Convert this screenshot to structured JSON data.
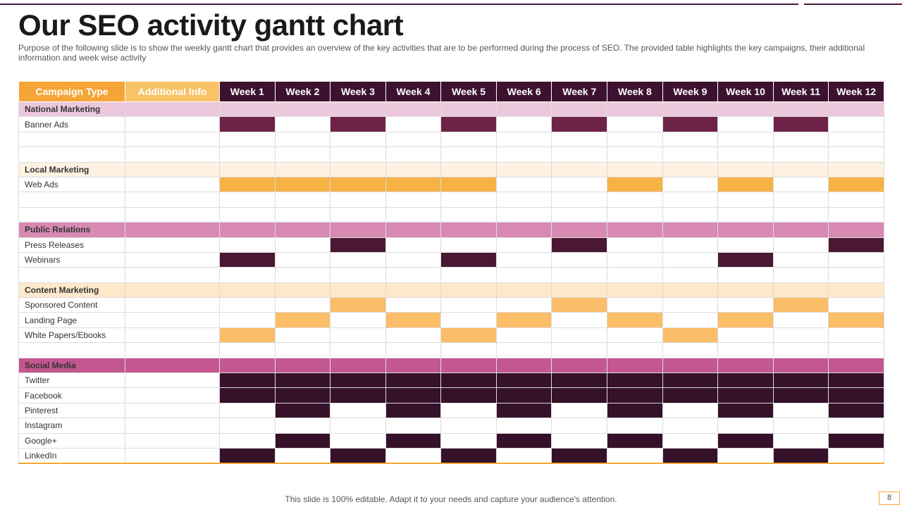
{
  "slide": {
    "title": "Our SEO activity gantt chart",
    "subtitle": "Purpose of the following slide is to show the weekly gantt chart that provides an overview of the key activities that are to be performed during the process of SEO. The provided table highlights the key campaigns, their additional information and week wise activity",
    "footer": "This slide is 100% editable. Adapt it to your needs and capture your audience's attention.",
    "page_number": "8"
  },
  "colors": {
    "header_campaign": "#f5a535",
    "header_info": "#f8c266",
    "header_week": "#3d1230"
  },
  "table": {
    "headers": {
      "campaign": "Campaign Type",
      "info": "Additional Info",
      "weeks": [
        "Week 1",
        "Week 2",
        "Week 3",
        "Week 4",
        "Week 5",
        "Week 6",
        "Week 7",
        "Week 8",
        "Week 9",
        "Week 10",
        "Week 11",
        "Week 12"
      ]
    },
    "rows": [
      {
        "type": "section",
        "label": "National Marketing",
        "bg": "#ecc8dd"
      },
      {
        "type": "task",
        "label": "Banner Ads",
        "color": "#6e2248",
        "weeks": [
          1,
          0,
          1,
          0,
          1,
          0,
          1,
          0,
          1,
          0,
          1,
          0
        ]
      },
      {
        "type": "task",
        "label": "",
        "color": "",
        "weeks": [
          0,
          0,
          0,
          0,
          0,
          0,
          0,
          0,
          0,
          0,
          0,
          0
        ]
      },
      {
        "type": "task",
        "label": "",
        "color": "",
        "weeks": [
          0,
          0,
          0,
          0,
          0,
          0,
          0,
          0,
          0,
          0,
          0,
          0
        ]
      },
      {
        "type": "section",
        "label": "Local Marketing",
        "bg": "#fdf1e2"
      },
      {
        "type": "task",
        "label": "Web Ads",
        "color": "#f7b244",
        "weeks": [
          1,
          1,
          1,
          1,
          1,
          0,
          0,
          1,
          0,
          1,
          0,
          1
        ]
      },
      {
        "type": "task",
        "label": "",
        "color": "",
        "weeks": [
          0,
          0,
          0,
          0,
          0,
          0,
          0,
          0,
          0,
          0,
          0,
          0
        ]
      },
      {
        "type": "task",
        "label": "",
        "color": "",
        "weeks": [
          0,
          0,
          0,
          0,
          0,
          0,
          0,
          0,
          0,
          0,
          0,
          0
        ]
      },
      {
        "type": "section",
        "label": "Public Relations",
        "bg": "#d88ab3"
      },
      {
        "type": "task",
        "label": "Press Releases",
        "color": "#4a1833",
        "weeks": [
          0,
          0,
          1,
          0,
          0,
          0,
          1,
          0,
          0,
          0,
          0,
          1
        ]
      },
      {
        "type": "task",
        "label": "Webinars",
        "color": "#4a1833",
        "weeks": [
          1,
          0,
          0,
          0,
          1,
          0,
          0,
          0,
          0,
          1,
          0,
          0
        ]
      },
      {
        "type": "task",
        "label": "",
        "color": "",
        "weeks": [
          0,
          0,
          0,
          0,
          0,
          0,
          0,
          0,
          0,
          0,
          0,
          0
        ]
      },
      {
        "type": "section",
        "label": "Content Marketing",
        "bg": "#fde8c9"
      },
      {
        "type": "task",
        "label": "Sponsored Content",
        "color": "#fbbd68",
        "weeks": [
          0,
          0,
          1,
          0,
          0,
          0,
          1,
          0,
          0,
          0,
          1,
          0
        ]
      },
      {
        "type": "task",
        "label": "Landing Page",
        "color": "#fbbd68",
        "weeks": [
          0,
          1,
          0,
          1,
          0,
          1,
          0,
          1,
          0,
          1,
          0,
          1
        ]
      },
      {
        "type": "task",
        "label": "White Papers/Ebooks",
        "color": "#fbbd68",
        "weeks": [
          1,
          0,
          0,
          0,
          1,
          0,
          0,
          0,
          1,
          0,
          0,
          0
        ]
      },
      {
        "type": "task",
        "label": "",
        "color": "",
        "weeks": [
          0,
          0,
          0,
          0,
          0,
          0,
          0,
          0,
          0,
          0,
          0,
          0
        ]
      },
      {
        "type": "section",
        "label": "Social Media",
        "bg": "#c4578f"
      },
      {
        "type": "task",
        "label": "Twitter",
        "color": "#35112a",
        "weeks": [
          1,
          1,
          1,
          1,
          1,
          1,
          1,
          1,
          1,
          1,
          1,
          1
        ]
      },
      {
        "type": "task",
        "label": "Facebook",
        "color": "#35112a",
        "weeks": [
          1,
          1,
          1,
          1,
          1,
          1,
          1,
          1,
          1,
          1,
          1,
          1
        ]
      },
      {
        "type": "task",
        "label": "Pinterest",
        "color": "#35112a",
        "weeks": [
          0,
          1,
          0,
          1,
          0,
          1,
          0,
          1,
          0,
          1,
          0,
          1
        ]
      },
      {
        "type": "task",
        "label": "Instagram",
        "color": "#35112a",
        "weeks": [
          0,
          0,
          0,
          0,
          0,
          0,
          0,
          0,
          0,
          0,
          0,
          0
        ]
      },
      {
        "type": "task",
        "label": "Google+",
        "color": "#35112a",
        "weeks": [
          0,
          1,
          0,
          1,
          0,
          1,
          0,
          1,
          0,
          1,
          0,
          1
        ]
      },
      {
        "type": "task",
        "label": "LinkedIn",
        "color": "#35112a",
        "weeks": [
          1,
          0,
          1,
          0,
          1,
          0,
          1,
          0,
          1,
          0,
          1,
          0
        ]
      }
    ]
  }
}
